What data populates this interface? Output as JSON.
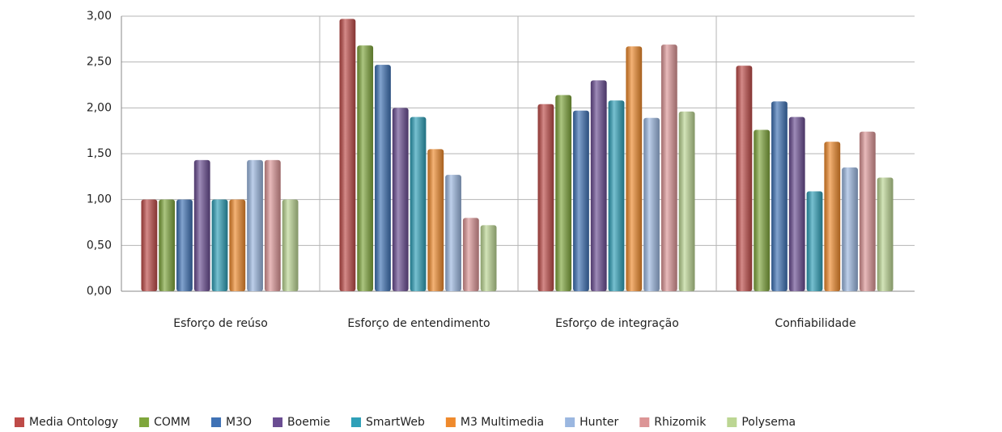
{
  "chart_data": {
    "type": "bar",
    "categories": [
      "Esforço de reúso",
      "Esforço de entendimento",
      "Esforço de integração",
      "Confiabilidade"
    ],
    "series": [
      {
        "name": "Media Ontology",
        "color": "#be4b48",
        "values": [
          1.0,
          2.97,
          2.04,
          2.46
        ]
      },
      {
        "name": "COMM",
        "color": "#7fa63c",
        "values": [
          1.0,
          2.68,
          2.14,
          1.76
        ]
      },
      {
        "name": "M3O",
        "color": "#3f72b5",
        "values": [
          1.0,
          2.47,
          1.97,
          2.07
        ]
      },
      {
        "name": "Boemie",
        "color": "#6a4d92",
        "values": [
          1.43,
          2.0,
          2.3,
          1.9
        ]
      },
      {
        "name": "SmartWeb",
        "color": "#2fa0b8",
        "values": [
          1.0,
          1.9,
          2.08,
          1.09
        ]
      },
      {
        "name": "M3 Multimedia",
        "color": "#ef8a2c",
        "values": [
          1.0,
          1.55,
          2.67,
          1.63
        ]
      },
      {
        "name": "Hunter",
        "color": "#9bb7e0",
        "values": [
          1.43,
          1.27,
          1.89,
          1.35
        ]
      },
      {
        "name": "Rhizomik",
        "color": "#dc9596",
        "values": [
          1.43,
          0.8,
          2.69,
          1.74
        ]
      },
      {
        "name": "Polysema",
        "color": "#bcd693",
        "values": [
          1.0,
          0.72,
          1.96,
          1.24
        ]
      }
    ],
    "ylim": [
      0,
      3
    ],
    "yticks": [
      {
        "value": 0,
        "label": "0,00"
      },
      {
        "value": 0.5,
        "label": "0,50"
      },
      {
        "value": 1,
        "label": "1,00"
      },
      {
        "value": 1.5,
        "label": "1,50"
      },
      {
        "value": 2,
        "label": "2,00"
      },
      {
        "value": 2.5,
        "label": "2,50"
      },
      {
        "value": 3,
        "label": "3,00"
      }
    ],
    "grid": true,
    "legend": "bottom"
  }
}
